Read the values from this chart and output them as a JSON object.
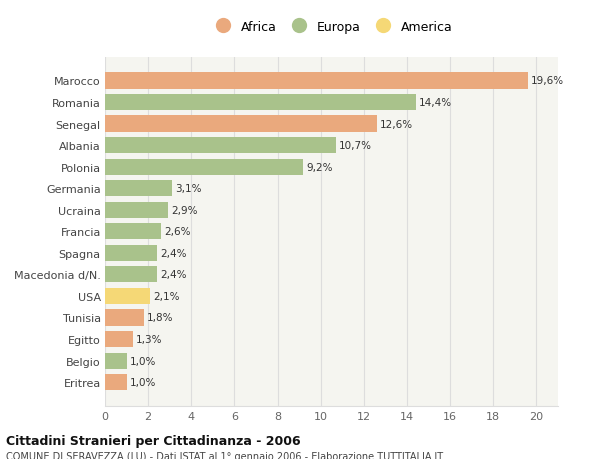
{
  "categories": [
    "Eritrea",
    "Belgio",
    "Egitto",
    "Tunisia",
    "USA",
    "Macedonia d/N.",
    "Spagna",
    "Francia",
    "Ucraina",
    "Germania",
    "Polonia",
    "Albania",
    "Senegal",
    "Romania",
    "Marocco"
  ],
  "values": [
    1.0,
    1.0,
    1.3,
    1.8,
    2.1,
    2.4,
    2.4,
    2.6,
    2.9,
    3.1,
    9.2,
    10.7,
    12.6,
    14.4,
    19.6
  ],
  "labels": [
    "1,0%",
    "1,0%",
    "1,3%",
    "1,8%",
    "2,1%",
    "2,4%",
    "2,4%",
    "2,6%",
    "2,9%",
    "3,1%",
    "9,2%",
    "10,7%",
    "12,6%",
    "14,4%",
    "19,6%"
  ],
  "continent": [
    "Africa",
    "Europa",
    "Africa",
    "Africa",
    "America",
    "Europa",
    "Europa",
    "Europa",
    "Europa",
    "Europa",
    "Europa",
    "Europa",
    "Africa",
    "Europa",
    "Africa"
  ],
  "colors": {
    "Africa": "#EAA97D",
    "Europa": "#A9C28B",
    "America": "#F5D876"
  },
  "legend": [
    {
      "label": "Africa",
      "color": "#EAA97D"
    },
    {
      "label": "Europa",
      "color": "#A9C28B"
    },
    {
      "label": "America",
      "color": "#F5D876"
    }
  ],
  "xlim": [
    0,
    21
  ],
  "xticks": [
    0,
    2,
    4,
    6,
    8,
    10,
    12,
    14,
    16,
    18,
    20
  ],
  "title": "Cittadini Stranieri per Cittadinanza - 2006",
  "subtitle": "COMUNE DI SERAVEZZA (LU) - Dati ISTAT al 1° gennaio 2006 - Elaborazione TUTTITALIA.IT",
  "background_color": "#ffffff",
  "plot_background": "#f5f5f0",
  "grid_color": "#dddddd",
  "bar_height": 0.75
}
